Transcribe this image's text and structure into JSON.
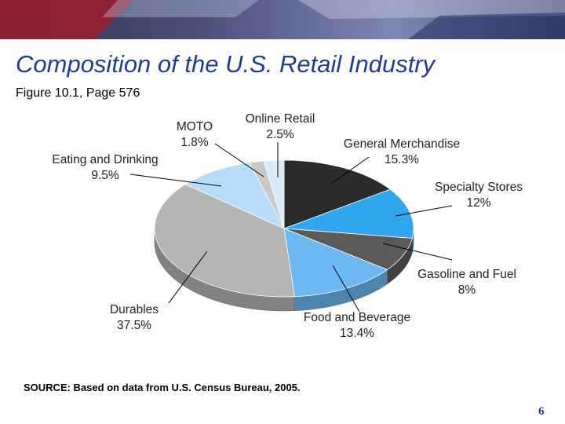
{
  "slide": {
    "title": "Composition of the U.S. Retail Industry",
    "subtitle": "Figure 10.1, Page 576",
    "source": "SOURCE: Based on data from U.S. Census Bureau, 2005.",
    "page_number": "6"
  },
  "colors": {
    "title": "#1f3a9b",
    "banner_dark": "#3b3f6e",
    "banner_red": "#b31f2a"
  },
  "chart_data": {
    "type": "pie",
    "title": "Composition of the U.S. Retail Industry",
    "unit": "%",
    "slices": [
      {
        "name": "General Merchandise",
        "value": 15.3,
        "value_label": "15.3%",
        "color": "#2b2b2b"
      },
      {
        "name": "Specialty Stores",
        "value": 12,
        "value_label": "12%",
        "color": "#2fa6ee"
      },
      {
        "name": "Gasoline and Fuel",
        "value": 8,
        "value_label": "8%",
        "color": "#5a5a5a"
      },
      {
        "name": "Food and Beverage",
        "value": 13.4,
        "value_label": "13.4%",
        "color": "#6bb8f2"
      },
      {
        "name": "Durables",
        "value": 37.5,
        "value_label": "37.5%",
        "color": "#b5b5b5"
      },
      {
        "name": "Eating and Drinking",
        "value": 9.5,
        "value_label": "9.5%",
        "color": "#b5dcf8"
      },
      {
        "name": "MOTO",
        "value": 1.8,
        "value_label": "1.8%",
        "color": "#c9c9c9"
      },
      {
        "name": "Online Retail",
        "value": 2.5,
        "value_label": "2.5%",
        "color": "#d6ecfb"
      }
    ]
  }
}
